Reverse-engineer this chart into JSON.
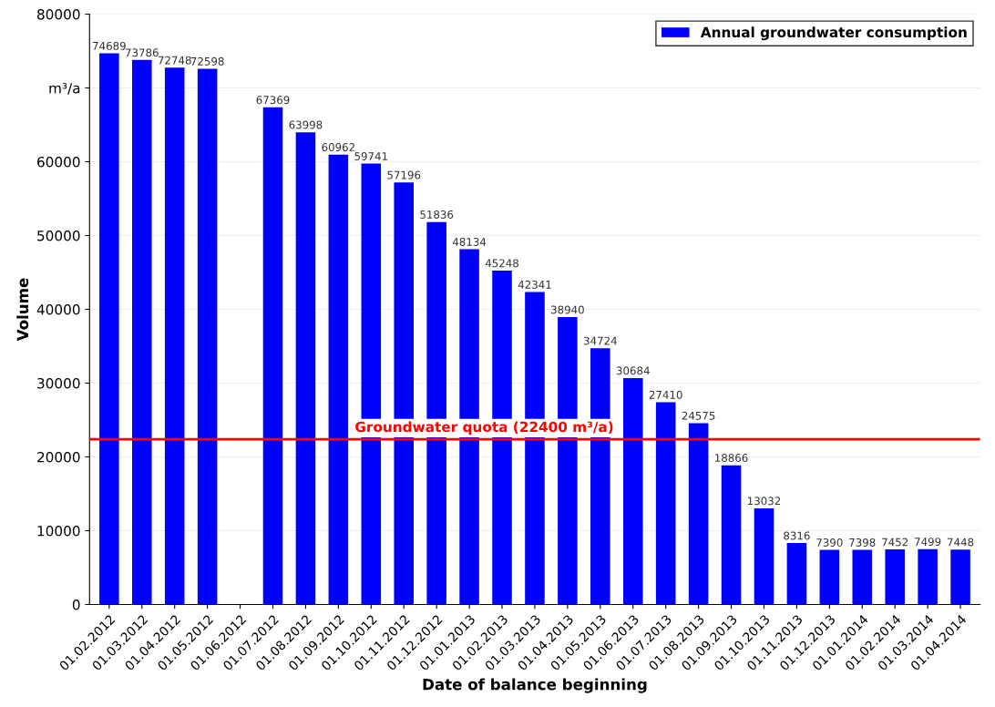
{
  "chart_data": {
    "type": "bar",
    "xlabel": "Date of balance beginning",
    "ylabel": "Volume",
    "categories": [
      "01.02.2012",
      "01.03.2012",
      "01.04.2012",
      "01.05.2012",
      "01.06.2012",
      "01.07.2012",
      "01.08.2012",
      "01.09.2012",
      "01.10.2012",
      "01.11.2012",
      "01.12.2012",
      "01.01.2013",
      "01.02.2013",
      "01.03.2013",
      "01.04.2013",
      "01.05.2013",
      "01.06.2013",
      "01.07.2013",
      "01.08.2013",
      "01.09.2013",
      "01.10.2013",
      "01.11.2013",
      "01.12.2013",
      "01.01.2014",
      "01.02.2014",
      "01.03.2014",
      "01.04.2014"
    ],
    "series": [
      {
        "name": "Annual groundwater consumption",
        "color": "#0000ff",
        "values": [
          74689,
          73786,
          72748,
          72598,
          null,
          67369,
          63998,
          60962,
          59741,
          57196,
          51836,
          48134,
          45248,
          42341,
          38940,
          34724,
          30684,
          27410,
          24575,
          18866,
          13032,
          8316,
          7390,
          7398,
          7452,
          7499,
          7448
        ]
      }
    ],
    "ylim": [
      0,
      80000
    ],
    "yticks": [
      0,
      10000,
      20000,
      30000,
      40000,
      50000,
      60000,
      {
        "value": 70000,
        "label": "m³/a"
      },
      80000
    ],
    "ref_lines": [
      {
        "axis": "y",
        "value": 22400,
        "label": "Groundwater quota (22400 m³/a)",
        "color": "#ff0000",
        "line_style": "solid"
      }
    ],
    "data_labels": true,
    "grid": "y",
    "legend": "top right"
  }
}
